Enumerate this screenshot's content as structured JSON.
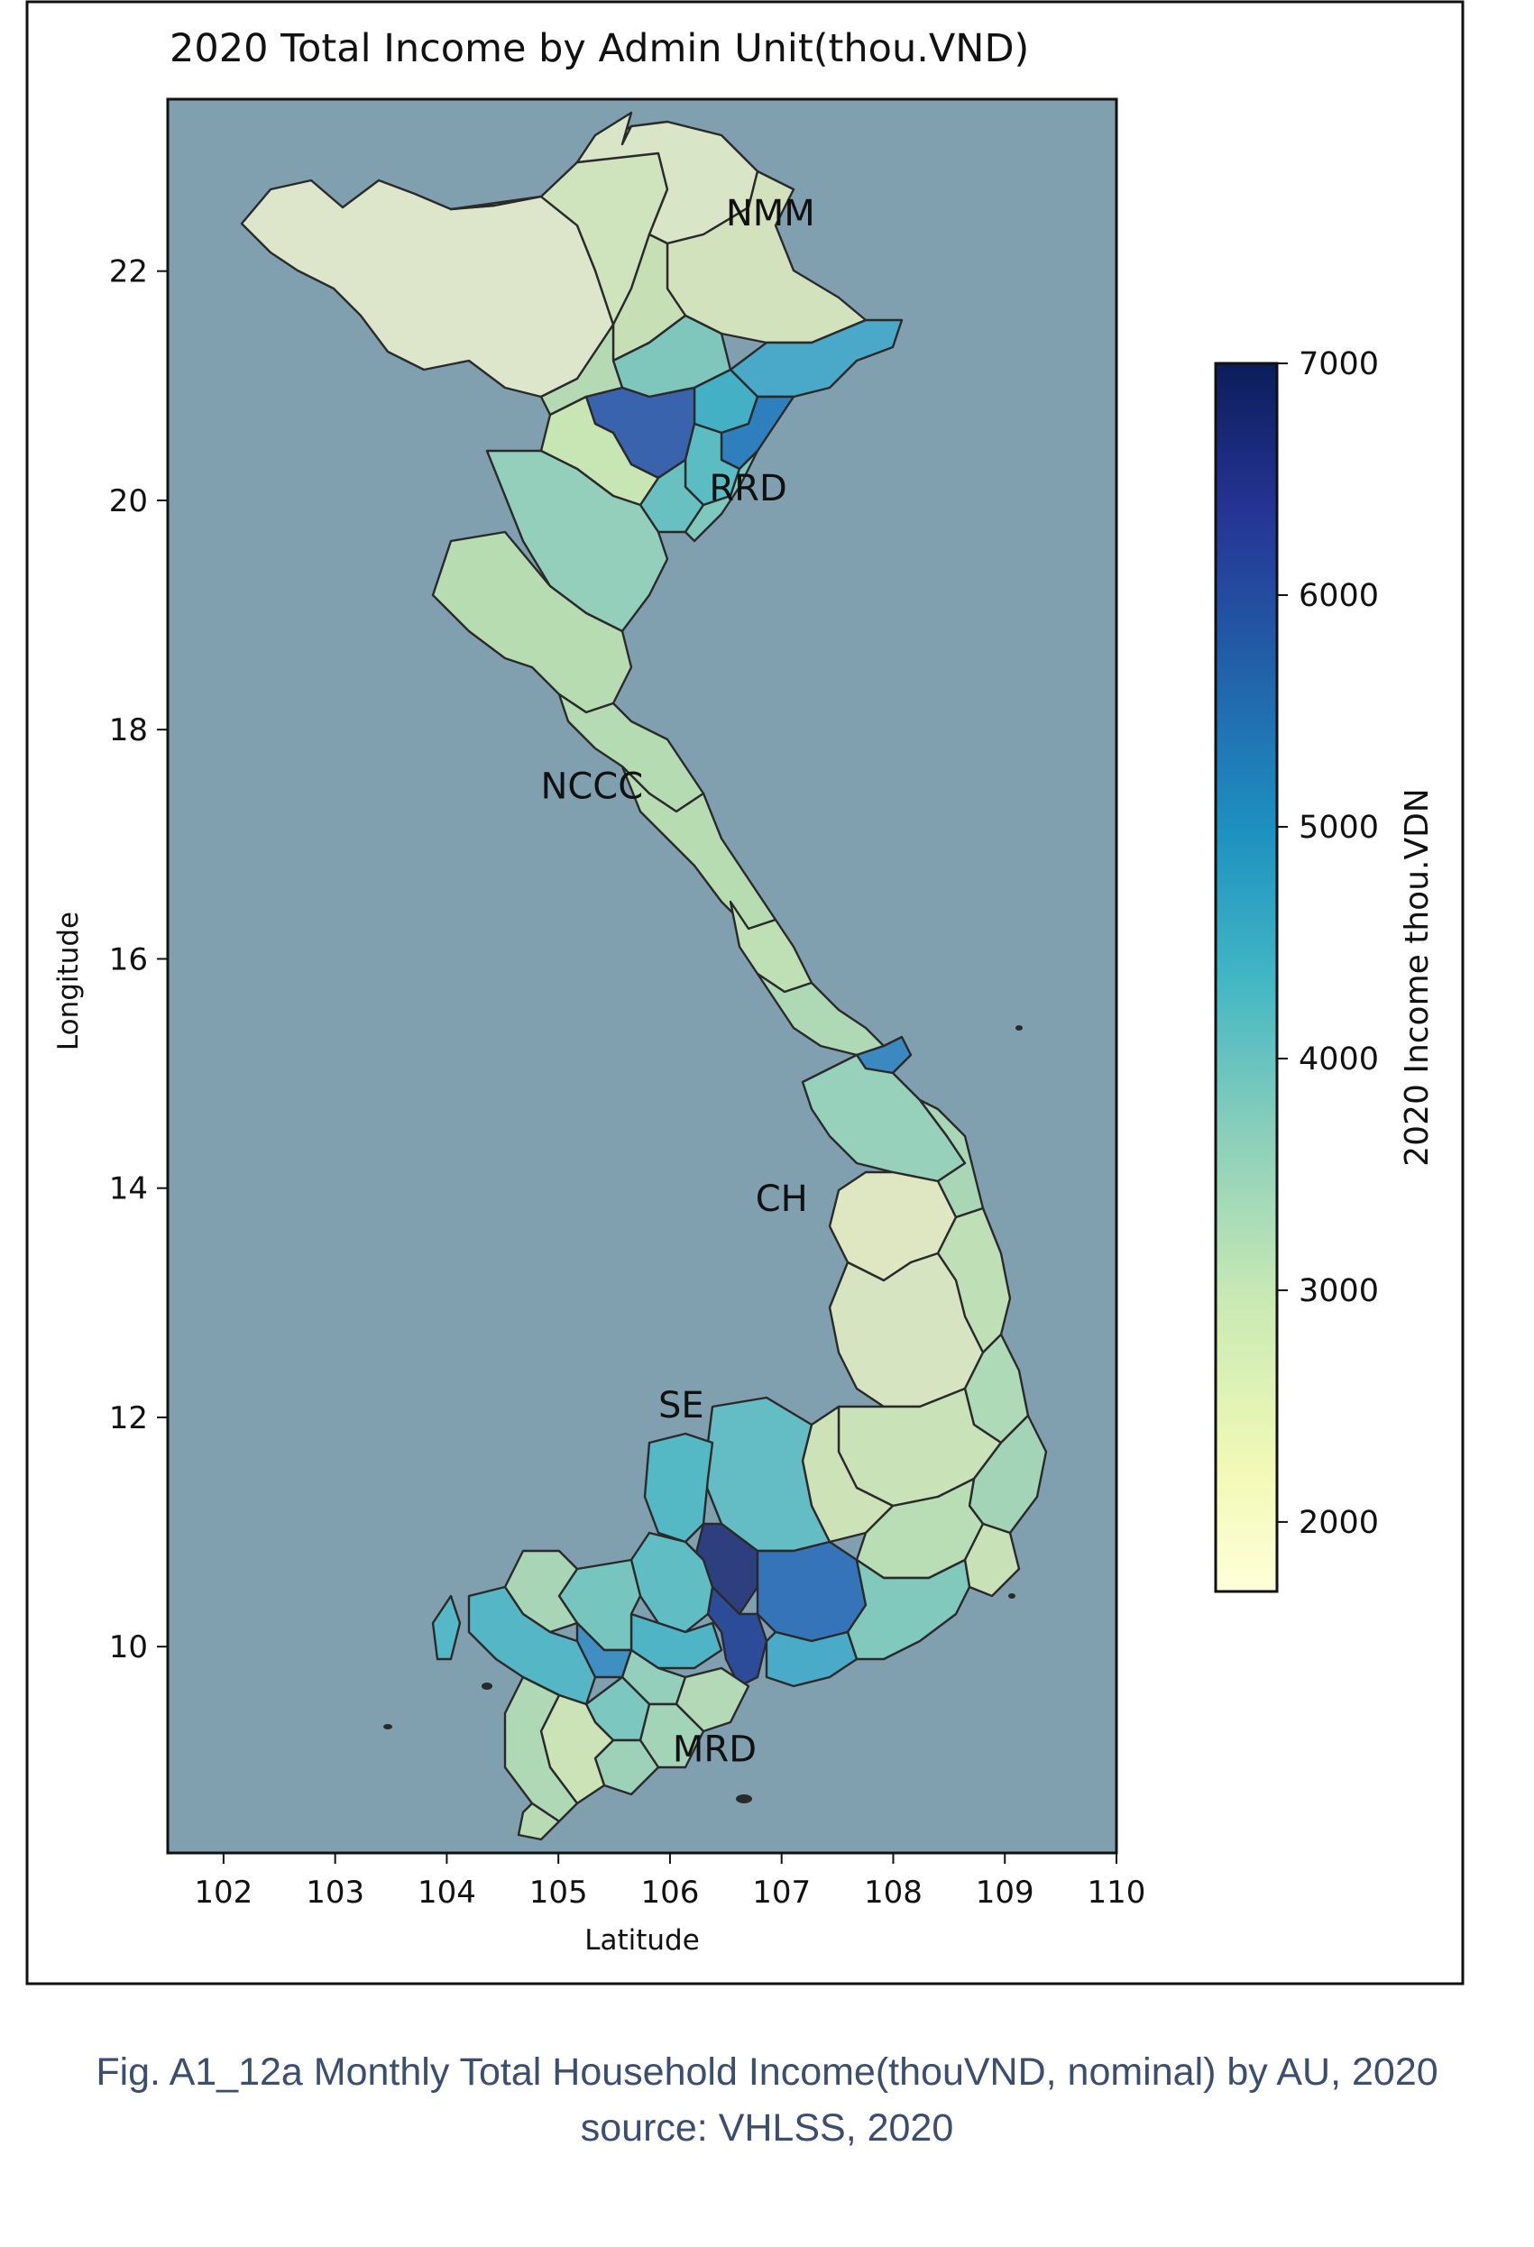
{
  "chart_data": {
    "type": "choropleth",
    "title": "2020 Total Income by Admin Unit(thou.VND)",
    "xlabel": "Latitude",
    "ylabel": "Longitude",
    "xlim": [
      101.5,
      110
    ],
    "ylim": [
      8.2,
      23.5
    ],
    "xticks": [
      "102",
      "103",
      "104",
      "105",
      "106",
      "107",
      "108",
      "109",
      "110"
    ],
    "yticks": [
      "10",
      "12",
      "14",
      "16",
      "18",
      "20",
      "22"
    ],
    "colorbar": {
      "label": "2020 Income thou.VDN",
      "min": 1700,
      "max": 7000,
      "ticks": [
        "2000",
        "3000",
        "4000",
        "5000",
        "6000",
        "7000"
      ],
      "colormap": "YlGnBu"
    },
    "regions": [
      {
        "label": "NMM",
        "lon": 106.9,
        "lat": 22.4,
        "approx_income": 2800
      },
      {
        "label": "RRD",
        "lon": 106.7,
        "lat": 20.0,
        "approx_income": 4300
      },
      {
        "label": "NCCC",
        "lon": 105.3,
        "lat": 17.4,
        "approx_income": 3200
      },
      {
        "label": "CH",
        "lon": 107.0,
        "lat": 13.8,
        "approx_income": 2900
      },
      {
        "label": "SE",
        "lon": 106.1,
        "lat": 12.0,
        "approx_income": 4600
      },
      {
        "label": "MRD",
        "lon": 106.4,
        "lat": 9.0,
        "approx_income": 3900
      }
    ],
    "background_color": "#80a0b0"
  },
  "caption": {
    "line1": "Fig. A1_12a Monthly Total Household Income(thouVND, nominal) by AU, 2020",
    "line2": "source: VHLSS, 2020"
  }
}
